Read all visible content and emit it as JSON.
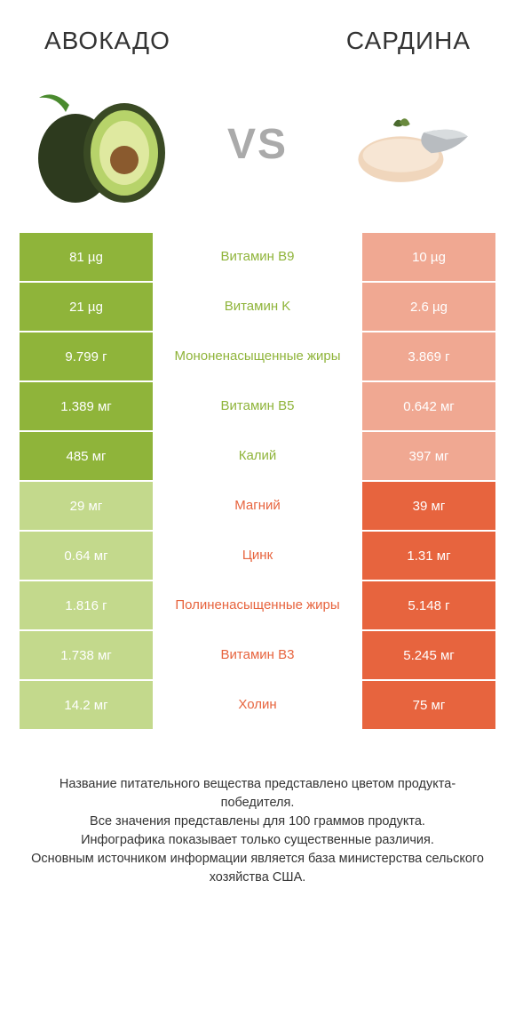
{
  "header": {
    "left_title": "АВОКАДО",
    "right_title": "САРДИНА",
    "vs_label": "VS"
  },
  "colors": {
    "left_win": "#8fb43a",
    "left_lose": "#c3d98c",
    "right_win": "#e7643e",
    "right_lose": "#f0a892",
    "text": "#333333",
    "vs": "#aaaaaa",
    "bg": "#ffffff"
  },
  "comparison": {
    "type": "table",
    "columns": [
      "left_value",
      "nutrient",
      "right_value"
    ],
    "rows": [
      {
        "left": "81 µg",
        "mid": "Витамин B9",
        "right": "10 µg",
        "winner": "left"
      },
      {
        "left": "21 µg",
        "mid": "Витамин K",
        "right": "2.6 µg",
        "winner": "left"
      },
      {
        "left": "9.799 г",
        "mid": "Мононенасыщенные жиры",
        "right": "3.869 г",
        "winner": "left"
      },
      {
        "left": "1.389 мг",
        "mid": "Витамин B5",
        "right": "0.642 мг",
        "winner": "left"
      },
      {
        "left": "485 мг",
        "mid": "Калий",
        "right": "397 мг",
        "winner": "left"
      },
      {
        "left": "29 мг",
        "mid": "Магний",
        "right": "39 мг",
        "winner": "right"
      },
      {
        "left": "0.64 мг",
        "mid": "Цинк",
        "right": "1.31 мг",
        "winner": "right"
      },
      {
        "left": "1.816 г",
        "mid": "Полиненасыщенные жиры",
        "right": "5.148 г",
        "winner": "right"
      },
      {
        "left": "1.738 мг",
        "mid": "Витамин B3",
        "right": "5.245 мг",
        "winner": "right"
      },
      {
        "left": "14.2 мг",
        "mid": "Холин",
        "right": "75 мг",
        "winner": "right"
      }
    ]
  },
  "footnote": "Название питательного вещества представлено цветом продукта-победителя.\nВсе значения представлены для 100 граммов продукта.\nИнфографика показывает только существенные различия.\nОсновным источником информации является база министерства сельского хозяйства США.",
  "images": {
    "left_alt": "avocado-illustration",
    "right_alt": "sardine-illustration"
  }
}
